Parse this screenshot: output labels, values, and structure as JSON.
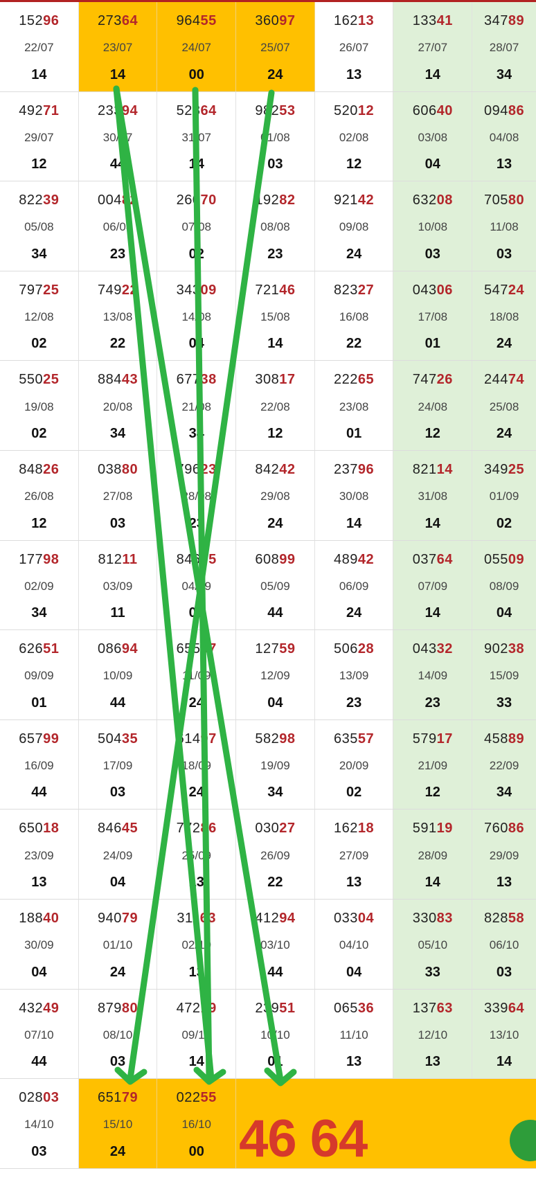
{
  "rows": [
    [
      {
        "num": "15296",
        "date": "22/07",
        "val": "14"
      },
      {
        "num": "27364",
        "date": "23/07",
        "val": "14",
        "hl": true
      },
      {
        "num": "96455",
        "date": "24/07",
        "val": "00",
        "hl": true
      },
      {
        "num": "36097",
        "date": "25/07",
        "val": "24",
        "hl": true
      },
      {
        "num": "16213",
        "date": "26/07",
        "val": "13"
      },
      {
        "num": "13341",
        "date": "27/07",
        "val": "14",
        "green": true
      },
      {
        "num": "34789",
        "date": "28/07",
        "val": "34",
        "green": true
      }
    ],
    [
      {
        "num": "49271",
        "date": "29/07",
        "val": "12"
      },
      {
        "num": "23394",
        "date": "30/07",
        "val": "44"
      },
      {
        "num": "52864",
        "date": "31/07",
        "val": "14"
      },
      {
        "num": "98253",
        "date": "01/08",
        "val": "03"
      },
      {
        "num": "52012",
        "date": "02/08",
        "val": "12"
      },
      {
        "num": "60640",
        "date": "03/08",
        "val": "04",
        "green": true
      },
      {
        "num": "09486",
        "date": "04/08",
        "val": "13",
        "green": true
      }
    ],
    [
      {
        "num": "82239",
        "date": "05/08",
        "val": "34"
      },
      {
        "num": "00482",
        "date": "06/08",
        "val": "23"
      },
      {
        "num": "26070",
        "date": "07/08",
        "val": "02"
      },
      {
        "num": "19282",
        "date": "08/08",
        "val": "23"
      },
      {
        "num": "92142",
        "date": "09/08",
        "val": "24"
      },
      {
        "num": "63208",
        "date": "10/08",
        "val": "03",
        "green": true
      },
      {
        "num": "70580",
        "date": "11/08",
        "val": "03",
        "green": true
      }
    ],
    [
      {
        "num": "79725",
        "date": "12/08",
        "val": "02"
      },
      {
        "num": "74922",
        "date": "13/08",
        "val": "22"
      },
      {
        "num": "34309",
        "date": "14/08",
        "val": "04"
      },
      {
        "num": "72146",
        "date": "15/08",
        "val": "14"
      },
      {
        "num": "82327",
        "date": "16/08",
        "val": "22"
      },
      {
        "num": "04306",
        "date": "17/08",
        "val": "01",
        "green": true
      },
      {
        "num": "54724",
        "date": "18/08",
        "val": "24",
        "green": true
      }
    ],
    [
      {
        "num": "55025",
        "date": "19/08",
        "val": "02"
      },
      {
        "num": "88443",
        "date": "20/08",
        "val": "34"
      },
      {
        "num": "67738",
        "date": "21/08",
        "val": "34"
      },
      {
        "num": "30817",
        "date": "22/08",
        "val": "12"
      },
      {
        "num": "22265",
        "date": "23/08",
        "val": "01"
      },
      {
        "num": "74726",
        "date": "24/08",
        "val": "12",
        "green": true
      },
      {
        "num": "24474",
        "date": "25/08",
        "val": "24",
        "green": true
      }
    ],
    [
      {
        "num": "84826",
        "date": "26/08",
        "val": "12"
      },
      {
        "num": "03880",
        "date": "27/08",
        "val": "03"
      },
      {
        "num": "79623",
        "date": "28/08",
        "val": "23"
      },
      {
        "num": "84242",
        "date": "29/08",
        "val": "24"
      },
      {
        "num": "23796",
        "date": "30/08",
        "val": "14"
      },
      {
        "num": "82114",
        "date": "31/08",
        "val": "14",
        "green": true
      },
      {
        "num": "34925",
        "date": "01/09",
        "val": "02",
        "green": true
      }
    ],
    [
      {
        "num": "17798",
        "date": "02/09",
        "val": "34"
      },
      {
        "num": "81211",
        "date": "03/09",
        "val": "11"
      },
      {
        "num": "84605",
        "date": "04/09",
        "val": "03"
      },
      {
        "num": "60899",
        "date": "05/09",
        "val": "44"
      },
      {
        "num": "48942",
        "date": "06/09",
        "val": "24"
      },
      {
        "num": "03764",
        "date": "07/09",
        "val": "14",
        "green": true
      },
      {
        "num": "05509",
        "date": "08/09",
        "val": "04",
        "green": true
      }
    ],
    [
      {
        "num": "62651",
        "date": "09/09",
        "val": "01"
      },
      {
        "num": "08694",
        "date": "10/09",
        "val": "44"
      },
      {
        "num": "65557",
        "date": "11/09",
        "val": "24"
      },
      {
        "num": "12759",
        "date": "12/09",
        "val": "04"
      },
      {
        "num": "50628",
        "date": "13/09",
        "val": "23"
      },
      {
        "num": "04332",
        "date": "14/09",
        "val": "23",
        "green": true
      },
      {
        "num": "90238",
        "date": "15/09",
        "val": "33",
        "green": true
      }
    ],
    [
      {
        "num": "65799",
        "date": "16/09",
        "val": "44"
      },
      {
        "num": "50435",
        "date": "17/09",
        "val": "03"
      },
      {
        "num": "61497",
        "date": "18/09",
        "val": "24"
      },
      {
        "num": "58298",
        "date": "19/09",
        "val": "34"
      },
      {
        "num": "63557",
        "date": "20/09",
        "val": "02"
      },
      {
        "num": "57917",
        "date": "21/09",
        "val": "12",
        "green": true
      },
      {
        "num": "45889",
        "date": "22/09",
        "val": "34",
        "green": true
      }
    ],
    [
      {
        "num": "65018",
        "date": "23/09",
        "val": "13"
      },
      {
        "num": "84645",
        "date": "24/09",
        "val": "04"
      },
      {
        "num": "77286",
        "date": "25/09",
        "val": "13"
      },
      {
        "num": "03027",
        "date": "26/09",
        "val": "22"
      },
      {
        "num": "16218",
        "date": "27/09",
        "val": "13"
      },
      {
        "num": "59119",
        "date": "28/09",
        "val": "14",
        "green": true
      },
      {
        "num": "76086",
        "date": "29/09",
        "val": "13",
        "green": true
      }
    ],
    [
      {
        "num": "18840",
        "date": "30/09",
        "val": "04"
      },
      {
        "num": "94079",
        "date": "01/10",
        "val": "24"
      },
      {
        "num": "31163",
        "date": "02/10",
        "val": "13"
      },
      {
        "num": "41294",
        "date": "03/10",
        "val": "44"
      },
      {
        "num": "03304",
        "date": "04/10",
        "val": "04"
      },
      {
        "num": "33083",
        "date": "05/10",
        "val": "33",
        "green": true
      },
      {
        "num": "82858",
        "date": "06/10",
        "val": "03",
        "green": true
      }
    ],
    [
      {
        "num": "43249",
        "date": "07/10",
        "val": "44"
      },
      {
        "num": "87980",
        "date": "08/10",
        "val": "03"
      },
      {
        "num": "47219",
        "date": "09/10",
        "val": "14"
      },
      {
        "num": "23951",
        "date": "10/10",
        "val": "01"
      },
      {
        "num": "06536",
        "date": "11/10",
        "val": "13"
      },
      {
        "num": "13763",
        "date": "12/10",
        "val": "13",
        "green": true
      },
      {
        "num": "33964",
        "date": "13/10",
        "val": "14",
        "green": true
      }
    ]
  ],
  "last_row": [
    {
      "num": "02803",
      "date": "14/10",
      "val": "03"
    },
    {
      "num": "65179",
      "date": "15/10",
      "val": "24",
      "hl": true
    },
    {
      "num": "02255",
      "date": "16/10",
      "val": "00",
      "hl": true
    }
  ],
  "prediction_text": "46 64",
  "colors": {
    "highlight": "#ffc000",
    "green_col": "#dff0d8",
    "digit_red": "#b3262b",
    "arrow_green": "#2fb344",
    "big_text": "#d6392b"
  }
}
